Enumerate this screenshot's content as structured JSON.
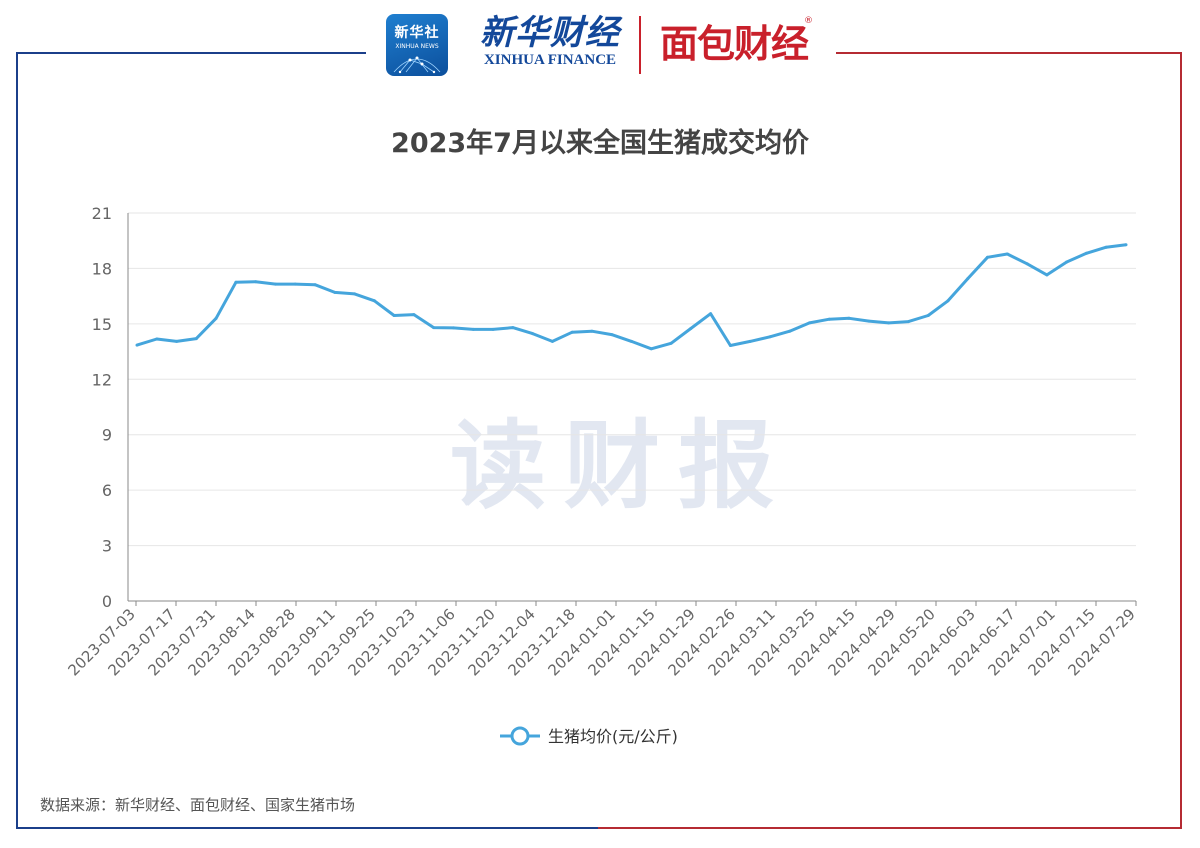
{
  "header": {
    "xinhua_badge_cn": "新华社",
    "xinhua_badge_en": "XINHUA NEWS",
    "xinhua_finance_cn": "新华财经",
    "xinhua_finance_en": "XINHUA FINANCE",
    "mianbao_logo": "面包财经",
    "mianbao_reg": "®"
  },
  "watermark": "读财报",
  "source_note": "数据来源：新华财经、面包财经、国家生猪市场",
  "colors": {
    "line": "#45a5dc",
    "frame_left": "#1b3f8a",
    "frame_right": "#b52b33",
    "text": "#666666",
    "grid": "#e6e6e6"
  },
  "chart_data": {
    "type": "line",
    "title": "2023年7月以来全国生猪成交均价",
    "xlabel": "",
    "ylabel": "",
    "ylim": [
      0,
      21
    ],
    "yticks": [
      0,
      3,
      6,
      9,
      12,
      15,
      18,
      21
    ],
    "grid": true,
    "legend": "bottom-center",
    "x_tick_labels": [
      "2023-07-03",
      "2023-07-17",
      "2023-07-31",
      "2023-08-14",
      "2023-08-28",
      "2023-09-11",
      "2023-09-25",
      "2023-10-23",
      "2023-11-06",
      "2023-11-20",
      "2023-12-04",
      "2023-12-18",
      "2024-01-01",
      "2024-01-15",
      "2024-01-29",
      "2024-02-26",
      "2024-03-11",
      "2024-03-25",
      "2024-04-15",
      "2024-04-29",
      "2024-05-20",
      "2024-06-03",
      "2024-06-17",
      "2024-07-01",
      "2024-07-15",
      "2024-07-29"
    ],
    "series": [
      {
        "name": "生猪均价(元/公斤)",
        "values": [
          13.85,
          14.18,
          14.05,
          14.2,
          15.3,
          17.25,
          17.28,
          17.15,
          17.15,
          17.12,
          16.7,
          16.62,
          16.25,
          15.45,
          15.5,
          14.8,
          14.78,
          14.7,
          14.7,
          14.8,
          14.47,
          14.05,
          14.55,
          14.6,
          14.42,
          14.05,
          13.65,
          13.95,
          14.75,
          15.55,
          13.83,
          14.05,
          14.3,
          14.6,
          15.05,
          15.25,
          15.3,
          15.15,
          15.05,
          15.12,
          15.45,
          16.25,
          17.45,
          18.6,
          18.78,
          18.25,
          17.65,
          18.35,
          18.82,
          19.15,
          19.28
        ]
      }
    ]
  }
}
